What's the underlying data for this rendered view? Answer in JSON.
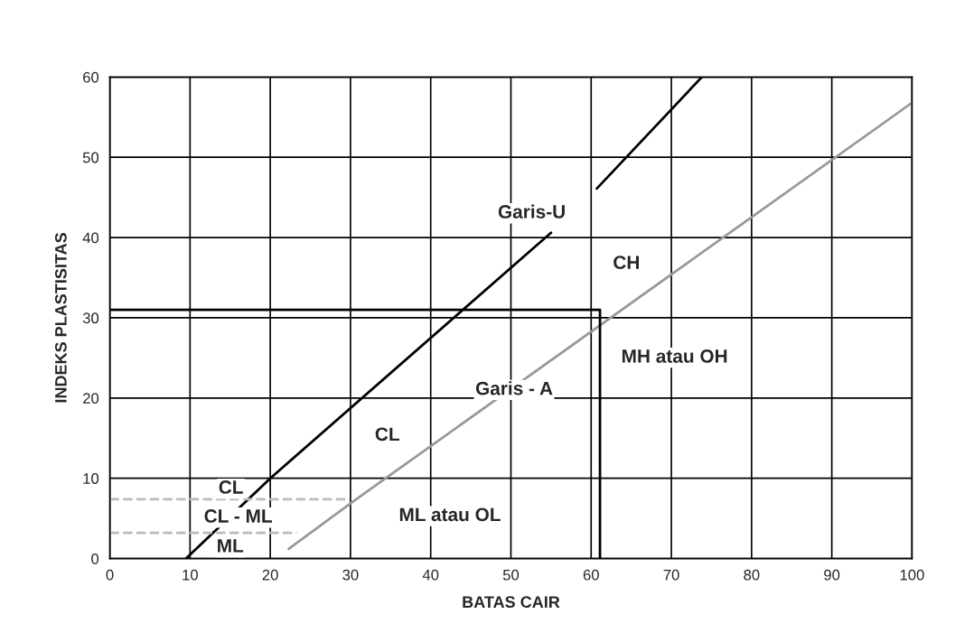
{
  "chart_data": {
    "type": "line",
    "xlabel": "BATAS CAIR",
    "ylabel": "INDEKS PLASTISITAS",
    "xlim": [
      0,
      100
    ],
    "ylim": [
      0,
      60
    ],
    "xticks": [
      0,
      10,
      20,
      30,
      40,
      50,
      60,
      70,
      80,
      90,
      100
    ],
    "yticks": [
      0,
      10,
      20,
      30,
      40,
      50,
      60
    ],
    "grid": true,
    "marker": "none",
    "series": [
      {
        "x": [
          9.5,
          20,
          55.0
        ],
        "values": [
          0,
          10,
          40.6
        ],
        "color": "#000000",
        "line_style": "solid"
      },
      {
        "x": [
          60.7,
          73.8
        ],
        "values": [
          46.1,
          60
        ],
        "color": "#000000",
        "line_style": "solid"
      },
      {
        "x": [
          22.3,
          30.6,
          100
        ],
        "values": [
          1.2,
          7.3,
          56.8
        ],
        "color": "#999999",
        "line_style": "solid"
      },
      {
        "x": [
          0,
          61.1,
          61.1
        ],
        "values": [
          31,
          31,
          0
        ],
        "color": "#000000",
        "line_style": "solid"
      },
      {
        "x": [
          0,
          29.8
        ],
        "values": [
          7.4,
          7.4
        ],
        "color": "#bbbbbb",
        "line_style": "dashed"
      },
      {
        "x": [
          0,
          23.3
        ],
        "values": [
          3.2,
          3.2
        ],
        "color": "#bbbbbb",
        "line_style": "dashed"
      }
    ],
    "annotations": [
      "Garis-U",
      {
        "text": "CH",
        "x": 64.4,
        "y": 36.7
      },
      "MH atau OH",
      {
        "text": "Garis - A",
        "x": 50.4,
        "y": 21
      },
      {
        "text": "CL",
        "x": 34.6,
        "y": 15.3
      },
      {
        "text": "CL",
        "x": 15.1,
        "y": 8.7
      },
      "CL - ML",
      {
        "text": "ML",
        "x": 15.0,
        "y": 1.4
      },
      "ML atau OL"
    ]
  }
}
